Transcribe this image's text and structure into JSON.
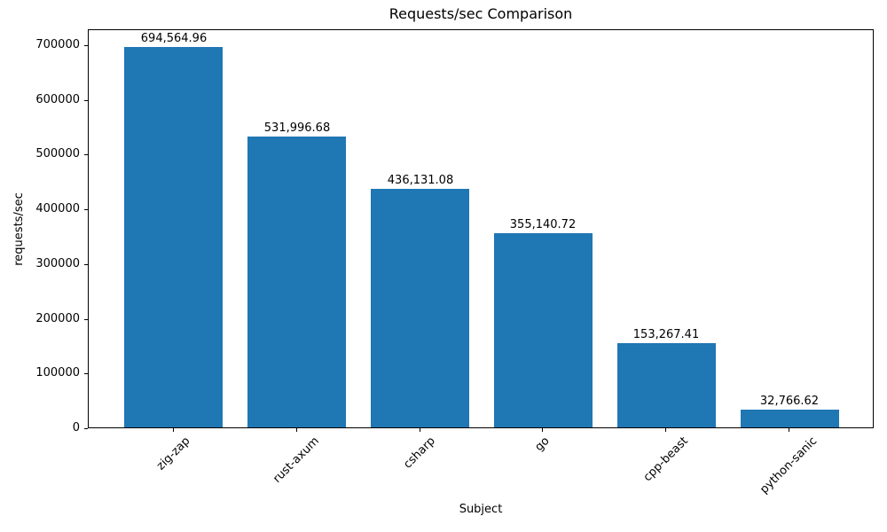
{
  "chart_data": {
    "type": "bar",
    "title": "Requests/sec Comparison",
    "xlabel": "Subject",
    "ylabel": "requests/sec",
    "categories": [
      "zig-zap",
      "rust-axum",
      "csharp",
      "go",
      "cpp-beast",
      "python-sanic"
    ],
    "values": [
      694564.96,
      531996.68,
      436131.08,
      355140.72,
      153267.41,
      32766.62
    ],
    "value_labels": [
      "694,564.96",
      "531,996.68",
      "436,131.08",
      "355,140.72",
      "153,267.41",
      "32,766.62"
    ],
    "yticks": [
      0,
      100000,
      200000,
      300000,
      400000,
      500000,
      600000,
      700000
    ],
    "ytick_labels": [
      "0",
      "100000",
      "200000",
      "300000",
      "400000",
      "500000",
      "600000",
      "700000"
    ],
    "ylim": [
      0,
      729293
    ],
    "bar_color": "#1f77b4",
    "grid": false,
    "legend_position": "none",
    "xtick_rotation_deg": 45
  }
}
